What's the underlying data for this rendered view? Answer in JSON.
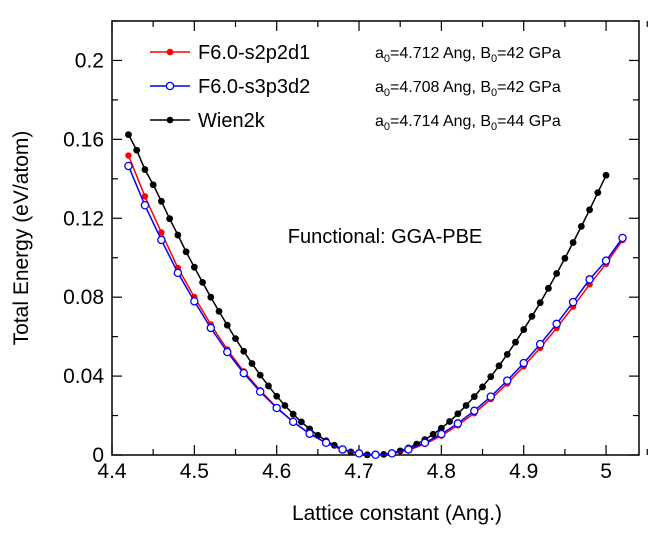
{
  "chart_data": {
    "type": "line",
    "title": "",
    "xlabel": "Lattice constant (Ang.)",
    "ylabel": "Total Energy (eV/atom)",
    "xlim": [
      4.4,
      5.04
    ],
    "ylim": [
      0,
      0.22
    ],
    "x_ticks": [
      "4.4",
      "4.5",
      "4.6",
      "4.7",
      "4.8",
      "4.9",
      "5"
    ],
    "y_ticks": [
      "0",
      "0.04",
      "0.08",
      "0.12",
      "0.16",
      "0.2"
    ],
    "annotation": "Functional: GGA-PBE",
    "series": [
      {
        "name": "F6.0-s2p2d1",
        "color": "#ff0000",
        "marker": "filled-circle",
        "fit": {
          "a_prefix": "a",
          "a_sub": "0",
          "a_value": "=4.712 Ang, ",
          "b_prefix": "B",
          "b_sub": "0",
          "b_value": "=42 GPa"
        },
        "a0": 4.712,
        "b0": 42,
        "x": [
          4.42,
          4.44,
          4.46,
          4.48,
          4.5,
          4.52,
          4.54,
          4.56,
          4.58,
          4.6,
          4.62,
          4.64,
          4.66,
          4.68,
          4.7,
          4.72,
          4.74,
          4.76,
          4.78,
          4.8,
          4.82,
          4.84,
          4.86,
          4.88,
          4.9,
          4.92,
          4.94,
          4.96,
          4.98,
          5.0,
          5.02
        ],
        "values": [
          0.1518,
          0.1311,
          0.1128,
          0.0948,
          0.0801,
          0.0662,
          0.0535,
          0.0424,
          0.0328,
          0.0241,
          0.0168,
          0.0108,
          0.0061,
          0.0026,
          0.0006,
          0.0,
          0.0006,
          0.0025,
          0.0056,
          0.0098,
          0.015,
          0.0212,
          0.0283,
          0.0362,
          0.0449,
          0.0543,
          0.0644,
          0.0752,
          0.0865,
          0.0969,
          0.1089
        ]
      },
      {
        "name": "F6.0-s3p3d2",
        "color": "#0000ff",
        "marker": "open-circle",
        "fit": {
          "a_prefix": "a",
          "a_sub": "0",
          "a_value": "=4.708 Ang, ",
          "b_prefix": "B",
          "b_sub": "0",
          "b_value": "=42 GPa"
        },
        "a0": 4.708,
        "b0": 42,
        "x": [
          4.42,
          4.44,
          4.46,
          4.48,
          4.5,
          4.52,
          4.54,
          4.56,
          4.58,
          4.6,
          4.62,
          4.64,
          4.66,
          4.68,
          4.7,
          4.72,
          4.74,
          4.76,
          4.78,
          4.8,
          4.82,
          4.84,
          4.86,
          4.88,
          4.9,
          4.92,
          4.94,
          4.96,
          4.98,
          5.0,
          5.02
        ],
        "values": [
          0.1465,
          0.1266,
          0.109,
          0.0923,
          0.0779,
          0.0644,
          0.0522,
          0.0415,
          0.0321,
          0.0238,
          0.0168,
          0.0108,
          0.0062,
          0.0028,
          0.0008,
          0.0001,
          0.0008,
          0.0028,
          0.0062,
          0.0106,
          0.016,
          0.0224,
          0.0296,
          0.0377,
          0.0466,
          0.0562,
          0.0665,
          0.0775,
          0.089,
          0.0985,
          0.11
        ]
      },
      {
        "name": "Wien2k",
        "color": "#000000",
        "marker": "filled-circle",
        "fit": {
          "a_prefix": "a",
          "a_sub": "0",
          "a_value": "=4.714 Ang, ",
          "b_prefix": "B",
          "b_sub": "0",
          "b_value": "=44 GPa"
        },
        "a0": 4.714,
        "b0": 44,
        "x": [
          4.42,
          4.43,
          4.44,
          4.45,
          4.46,
          4.47,
          4.48,
          4.49,
          4.5,
          4.51,
          4.52,
          4.53,
          4.54,
          4.55,
          4.56,
          4.57,
          4.58,
          4.59,
          4.6,
          4.61,
          4.62,
          4.63,
          4.64,
          4.65,
          4.66,
          4.67,
          4.68,
          4.69,
          4.7,
          4.71,
          4.72,
          4.73,
          4.74,
          4.75,
          4.76,
          4.77,
          4.78,
          4.79,
          4.8,
          4.81,
          4.82,
          4.83,
          4.84,
          4.85,
          4.86,
          4.87,
          4.88,
          4.89,
          4.9,
          4.91,
          4.92,
          4.93,
          4.94,
          4.95,
          4.96,
          4.97,
          4.98,
          4.99,
          5.0
        ],
        "values": [
          0.1624,
          0.1545,
          0.1447,
          0.137,
          0.1286,
          0.1198,
          0.1115,
          0.103,
          0.0952,
          0.0875,
          0.08,
          0.0728,
          0.0658,
          0.059,
          0.0526,
          0.0464,
          0.0405,
          0.035,
          0.0298,
          0.0251,
          0.0207,
          0.0168,
          0.0132,
          0.01,
          0.0072,
          0.0049,
          0.003,
          0.0016,
          0.0006,
          0.0001,
          0.0,
          0.0003,
          0.001,
          0.0021,
          0.0036,
          0.0055,
          0.0078,
          0.0105,
          0.0136,
          0.017,
          0.0209,
          0.0251,
          0.0296,
          0.0345,
          0.0397,
          0.0452,
          0.051,
          0.0572,
          0.0636,
          0.0703,
          0.0772,
          0.0845,
          0.092,
          0.0997,
          0.1077,
          0.1159,
          0.1243,
          0.133,
          0.1418
        ]
      }
    ]
  }
}
